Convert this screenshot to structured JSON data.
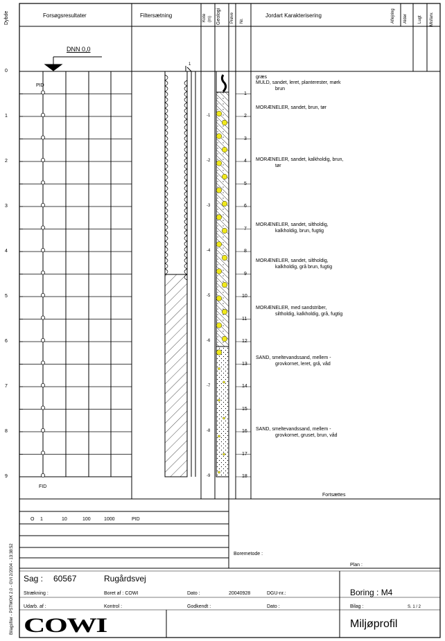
{
  "header": {
    "dybde": "Dybde",
    "forsog": "Forsøgsresultater",
    "filter": "Filtersætning",
    "kote": "Kote",
    "kote_unit": "(m)",
    "geologi": "Geologi",
    "prove": "Prøve",
    "nr": "Nr.",
    "jordart": "Jordart   Karakterisering",
    "aflejring": "Aflejring",
    "alder": "Alder",
    "lugt": "Lugt",
    "misfarv": "Misfarv."
  },
  "dnn_label": "DNN 0,0",
  "pid_top": "PID",
  "pid_bottom": "FID",
  "filter_marker": "1",
  "depth_ticks": [
    "0",
    "1",
    "2",
    "3",
    "4",
    "5",
    "6",
    "7",
    "8",
    "9"
  ],
  "kote_ticks": [
    "-1",
    "-2",
    "-3",
    "-4",
    "-5",
    "-6",
    "-7",
    "-8",
    "-9"
  ],
  "sample_numbers": [
    "1",
    "2",
    "3",
    "4",
    "5",
    "6",
    "7",
    "8",
    "9",
    "10",
    "11",
    "12",
    "13",
    "14",
    "15",
    "16",
    "17",
    "18"
  ],
  "layers": [
    {
      "line1": "græs"
    },
    {
      "line1": "MULD, sandet, leret, planterester, mørk",
      "line2": "brun"
    },
    {
      "line1": "MORÆNELER, sandet, brun, tør"
    },
    {
      "line1": "MORÆNELER, sandet, kalkholdig, brun,",
      "line2": "tør"
    },
    {
      "line1": "MORÆNELER, sandet, siltholdig,",
      "line2": "kalkholdig, brun, fugtig"
    },
    {
      "line1": "MORÆNELER, sandet, siltholdig,",
      "line2": "kalkholdig, grå brun, fugtig"
    },
    {
      "line1": "MORÆNELER, med sandstriber,",
      "line2": "siltholdig, kalkholdig, grå, fugtig"
    },
    {
      "line1": "SAND, smeltevandssand, mellem -",
      "line2": "grovkornet, leret, grå, våd"
    },
    {
      "line1": "SAND, smeltevandssand, mellem -",
      "line2": "grovkornet, gruset, brun, våd"
    }
  ],
  "fortsaettes": "Fortsættes",
  "scale": {
    "circle": "O",
    "values": [
      "1",
      "10",
      "100",
      "1000"
    ],
    "unit": "PID"
  },
  "boremetode": "Boremetode :",
  "plan": "Plan :",
  "side_stamp": "Bilagsfiler - PSTWOK 2.0 - GVI 2/2004 - 13:38:52",
  "footer": {
    "sag_label": "Sag :",
    "sag_value": "60567",
    "location": "Rugårdsvej",
    "straekning": "Strækning :",
    "boret_af": "Boret af : COWI",
    "dato_label": "Dato :",
    "dato_value": "20040928",
    "dgu": "DGU-nr.:",
    "boring": "Boring : M4",
    "udarb": "Udarb. af :",
    "kontrol": "Kontrol :",
    "godkendt": "Godkendt :",
    "dato2": "Dato :",
    "bilag": "Bilag :",
    "sheet": "S. 1 / 2",
    "logo": "COWI",
    "title": "Miljøprofil"
  }
}
